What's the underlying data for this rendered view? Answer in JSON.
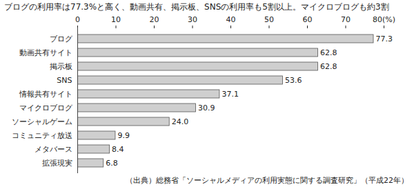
{
  "chart_data": {
    "type": "bar",
    "title": "ブログの利用率は77.3%と高く、動画共有、掲示板、SNSの利用率も5割以上。マイクロブログも約3割",
    "caption": "（出典）総務省「ソーシャルメディアの利用実態に関する調査研究」（平成22年）",
    "orientation": "horizontal",
    "categories": [
      "ブログ",
      "動画共有サイト",
      "掲示板",
      "SNS",
      "情報共有サイト",
      "マイクロブログ",
      "ソーシャルゲーム",
      "コミュニティ放送",
      "メタバース",
      "拡張現実"
    ],
    "values": [
      77.3,
      62.8,
      62.8,
      53.6,
      37.1,
      30.9,
      24.0,
      9.9,
      8.4,
      6.8
    ],
    "value_labels": [
      "77.3",
      "62.8",
      "62.8",
      "53.6",
      "37.1",
      "30.9",
      "24.0",
      "9.9",
      "8.4",
      "6.8"
    ],
    "data_labels": true,
    "color": "#cfcfcf",
    "xlim": [
      0,
      80
    ],
    "xticks": [
      0,
      10,
      20,
      30,
      40,
      50,
      60,
      70,
      {
        "value": 80,
        "label": "80(%)"
      }
    ],
    "grid": false
  }
}
